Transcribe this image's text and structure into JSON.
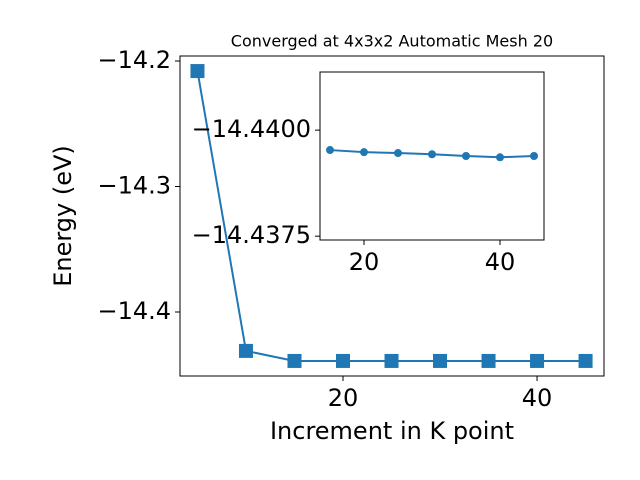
{
  "chart_data": [
    {
      "type": "line",
      "title": "Converged at 4x3x2 Automatic Mesh 20",
      "xlabel": "Increment in K point",
      "ylabel": "Energy (eV)",
      "x": [
        5,
        10,
        15,
        20,
        25,
        30,
        35,
        40,
        45
      ],
      "series": [
        {
          "color": "#1f77b4",
          "marker": "square",
          "values": [
            -14.208,
            -14.431,
            -14.439,
            -14.439,
            -14.439,
            -14.439,
            -14.439,
            -14.439,
            -14.439
          ]
        }
      ],
      "xlim": [
        3.2,
        46.9
      ],
      "xticks": [
        20,
        40
      ],
      "ylim": [
        -14.451,
        -14.196
      ],
      "yticks": [
        {
          "value": -14.2,
          "label": "−14.2"
        },
        {
          "value": -14.3,
          "label": "−14.3"
        },
        {
          "value": -14.4,
          "label": "−14.4"
        }
      ]
    },
    {
      "type": "line",
      "x": [
        15,
        20,
        25,
        30,
        35,
        40,
        45
      ],
      "series": [
        {
          "color": "#1f77b4",
          "marker": "circle",
          "values": [
            -14.43953,
            -14.43948,
            -14.43946,
            -14.43943,
            -14.43939,
            -14.43936,
            -14.43939
          ]
        }
      ],
      "xlim": [
        13.53,
        46.47
      ],
      "xticks": [
        20,
        40
      ],
      "ylim": [
        -14.43741,
        -14.44137
      ],
      "yticks": [
        {
          "value": -14.44,
          "label": "−14.4400"
        },
        {
          "value": -14.4375,
          "label": "−14.4375"
        }
      ]
    }
  ]
}
